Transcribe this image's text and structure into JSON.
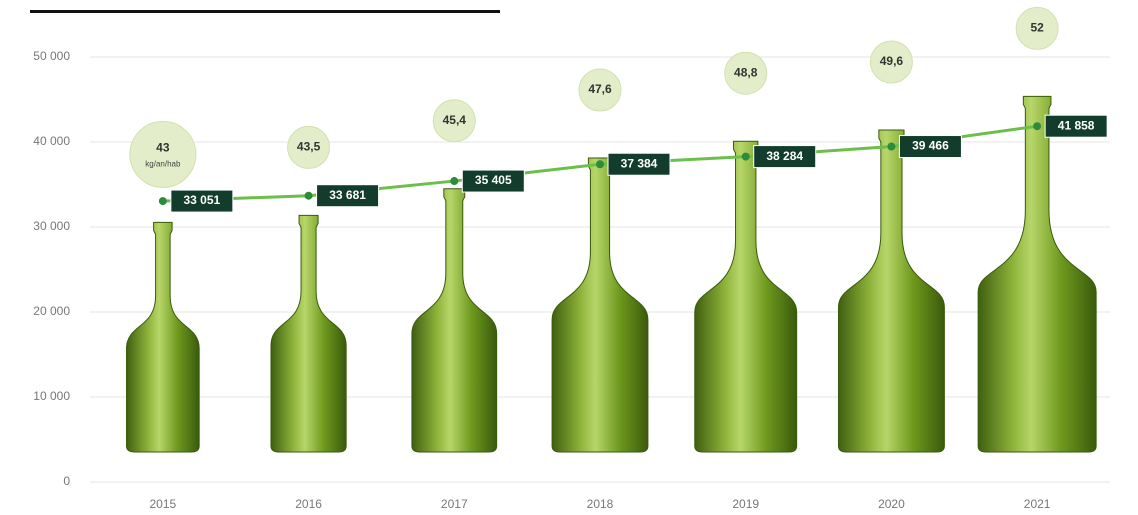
{
  "chart_data": {
    "type": "pictogram-line",
    "categories": [
      "2015",
      "2016",
      "2017",
      "2018",
      "2019",
      "2020",
      "2021"
    ],
    "ylim": [
      0,
      50000
    ],
    "yticks": [
      {
        "value": 0,
        "label": "0"
      },
      {
        "value": 10000,
        "label": "10 000"
      },
      {
        "value": 20000,
        "label": "20 000"
      },
      {
        "value": 30000,
        "label": "30 000"
      },
      {
        "value": 40000,
        "label": "40 000"
      },
      {
        "value": 50000,
        "label": "50 000"
      }
    ],
    "grid": true,
    "series": [
      {
        "color": "#6dbf4b",
        "values": [
          33051,
          33681,
          35405,
          37384,
          38284,
          39466,
          41858
        ],
        "value_labels": [
          "33 051",
          "33 681",
          "35 405",
          "37 384",
          "38 284",
          "39 466",
          "41 858"
        ]
      },
      {
        "color": "#7a9e1f",
        "unit": "kg/an/hab",
        "values": [
          43,
          43.5,
          45.4,
          47.6,
          48.8,
          49.6,
          52
        ],
        "value_labels": [
          "43",
          "43,5",
          "45,4",
          "47,6",
          "48,8",
          "49,6",
          "52"
        ]
      }
    ]
  }
}
